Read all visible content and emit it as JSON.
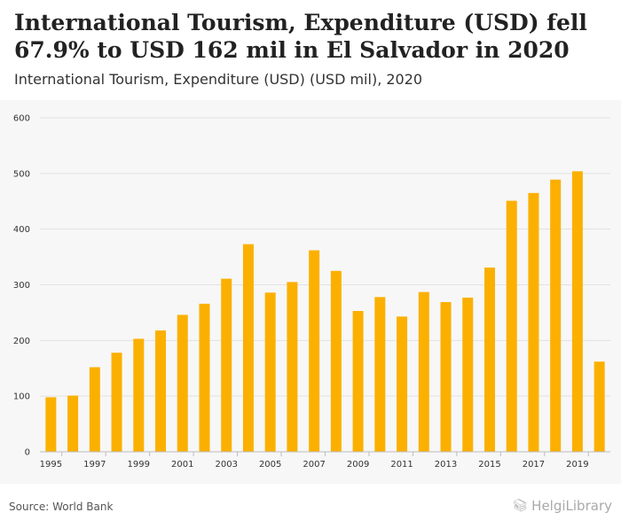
{
  "title": "International Tourism, Expenditure (USD) fell 67.9% to USD 162 mil in El Salvador in 2020",
  "subtitle": "International Tourism, Expenditure (USD) (USD mil), 2020",
  "source": "Source: World Bank",
  "logo": {
    "text": "HelgiLibrary",
    "icon": "books-icon"
  },
  "colors": {
    "bar": "#fbb000",
    "grid": "#e2e2e2",
    "background": "#f7f7f7"
  },
  "chart_data": {
    "type": "bar",
    "title": "International Tourism, Expenditure (USD) fell 67.9% to USD 162 mil in El Salvador in 2020",
    "xlabel": "",
    "ylabel": "USD mil",
    "ylim": [
      0,
      600
    ],
    "yticks": [
      0,
      100,
      200,
      300,
      400,
      500,
      600
    ],
    "categories": [
      "1995",
      "1996",
      "1997",
      "1998",
      "1999",
      "2000",
      "2001",
      "2002",
      "2003",
      "2004",
      "2005",
      "2006",
      "2007",
      "2008",
      "2009",
      "2010",
      "2011",
      "2012",
      "2013",
      "2014",
      "2015",
      "2016",
      "2017",
      "2018",
      "2019",
      "2020"
    ],
    "xtick_labels": [
      "1995",
      "1997",
      "1999",
      "2001",
      "2003",
      "2005",
      "2007",
      "2009",
      "2011",
      "2013",
      "2015",
      "2017",
      "2019"
    ],
    "values": [
      98,
      101,
      152,
      178,
      203,
      218,
      246,
      266,
      311,
      373,
      286,
      305,
      362,
      325,
      253,
      278,
      243,
      287,
      269,
      277,
      331,
      451,
      465,
      489,
      504,
      162
    ],
    "grid": true
  }
}
